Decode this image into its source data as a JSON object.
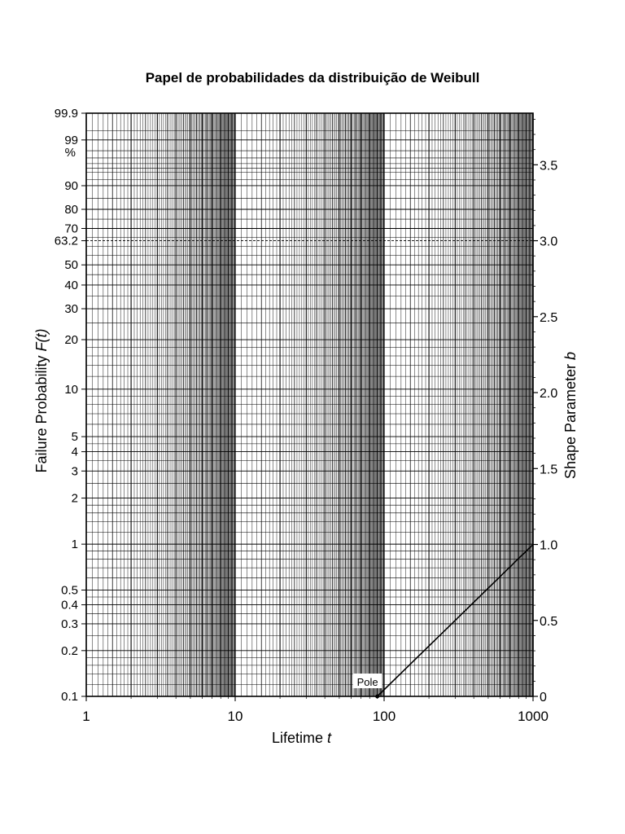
{
  "chart_data": {
    "type": "line",
    "title": "Papel de probabilidades da distribuição de Weibull",
    "xlabel": "Lifetime",
    "xlabel_var": "t",
    "ylabel": "Failure Probability",
    "ylabel_var": "F(t)",
    "y2label": "Shape Parameter",
    "y2label_var": "b",
    "x_scale": "log",
    "xlim": [
      1,
      1000
    ],
    "x_tick_labels": [
      "1",
      "10",
      "100",
      "1000"
    ],
    "y_scale": "weibull",
    "ylim": [
      0.1,
      99.9
    ],
    "y_tick_labels": [
      "0.1",
      "0.2",
      "0.3",
      "0.4",
      "0.5",
      "1",
      "2",
      "3",
      "4",
      "5",
      "10",
      "20",
      "30",
      "40",
      "50",
      "63.2",
      "70",
      "80",
      "90",
      "99",
      "99.9"
    ],
    "y_unit": "%",
    "y2_ticks": [
      0,
      0.5,
      1.0,
      1.5,
      2.0,
      2.5,
      3.0,
      3.5
    ],
    "y2_tick_labels": [
      "0",
      "0.5",
      "1.0",
      "1.5",
      "2.0",
      "2.5",
      "3.0",
      "3.5"
    ],
    "reference_line": {
      "label": "63.2",
      "value": 63.2,
      "style": "dashed"
    },
    "pole": {
      "label": "Pole",
      "x": 90,
      "b": 0
    },
    "series": [
      {
        "x": [
          90,
          1000
        ],
        "b": [
          0,
          1.0
        ]
      }
    ],
    "grid": true
  }
}
